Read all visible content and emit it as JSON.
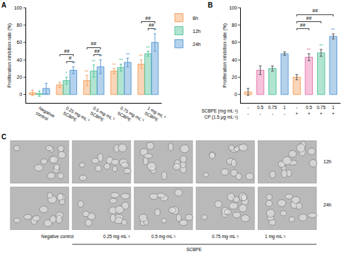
{
  "chart_data": [
    {
      "type": "bar",
      "panel": "A",
      "y_label": "Proliferation inhibition rate (%)",
      "categories": [
        "Negative control",
        "0.25 mg·mL⁻¹ SCBPE",
        "0.5 mg·mL⁻¹ SCBPE",
        "0.75 mg·mL⁻¹ SCBPE",
        "1 mg·mL⁻¹ SCBPE"
      ],
      "series": [
        {
          "name": "8h",
          "color": "#f4a261",
          "values": [
            2,
            11,
            16,
            27,
            35
          ],
          "errors": [
            3,
            3,
            6,
            3,
            5
          ],
          "annotations": [
            null,
            null,
            "**",
            "**",
            "**"
          ]
        },
        {
          "name": "12h",
          "color": "#52c49a",
          "values": [
            1,
            16,
            27,
            31,
            47
          ],
          "errors": [
            3,
            4,
            7,
            4,
            3
          ],
          "annotations": [
            null,
            "*",
            "**",
            "**",
            "**"
          ]
        },
        {
          "name": "24h",
          "color": "#5b9bd5",
          "values": [
            7,
            28,
            32,
            37,
            60
          ],
          "errors": [
            6,
            4,
            8,
            5,
            10
          ],
          "annotations": [
            null,
            "**",
            "**",
            "**",
            "**"
          ]
        }
      ],
      "comparisons": [
        {
          "category": "0.25 mg·mL⁻¹ SCBPE",
          "from": "12h",
          "to": "24h",
          "text": "#"
        },
        {
          "category": "0.25 mg·mL⁻¹ SCBPE",
          "from": "8h",
          "to": "24h",
          "text": "##"
        },
        {
          "category": "0.5 mg·mL⁻¹ SCBPE",
          "from": "12h",
          "to": "24h",
          "text": "##"
        },
        {
          "category": "0.5 mg·mL⁻¹ SCBPE",
          "from": "8h",
          "to": "24h",
          "text": "##"
        },
        {
          "category": "1 mg·mL⁻¹ SCBPE",
          "from": "12h",
          "to": "24h",
          "text": "##"
        },
        {
          "category": "1 mg·mL⁻¹ SCBPE",
          "from": "8h",
          "to": "24h",
          "text": "##"
        }
      ],
      "ylim": [
        -10,
        100
      ],
      "yticks": [
        0,
        20,
        40,
        60,
        80,
        100
      ],
      "grid": false,
      "legend": "top right"
    },
    {
      "type": "bar",
      "panel": "B",
      "y_label": "Proliferation inhibition rate (%)",
      "x_rows": [
        {
          "label": "SCBPE (mg·mL⁻¹)",
          "values": [
            "-",
            "0.5",
            "0.75",
            "1",
            "-",
            "0.5",
            "0.75",
            "1"
          ]
        },
        {
          "label": "CP (1.5 μg·mL⁻¹)",
          "values": [
            "-",
            "-",
            "-",
            "-",
            "+",
            "+",
            "+",
            "+"
          ]
        }
      ],
      "values": [
        3,
        28,
        30,
        47,
        20,
        43,
        48,
        67
      ],
      "errors": [
        4,
        5,
        3,
        2,
        3,
        4,
        4,
        3
      ],
      "colors": [
        "#f4a261",
        "#e87ab0",
        "#52c49a",
        "#5b9bd5",
        "#f4a261",
        "#e87ab0",
        "#52c49a",
        "#5b9bd5"
      ],
      "annotations": [
        null,
        null,
        null,
        null,
        null,
        "**",
        "**",
        "**"
      ],
      "comparisons": [
        {
          "from": 4,
          "to": 5,
          "text": "##"
        },
        {
          "from": 4,
          "to": 6,
          "text": "##"
        },
        {
          "from": 4,
          "to": 7,
          "text": "##"
        }
      ],
      "ylim": [
        -10,
        100
      ],
      "yticks": [
        0,
        20,
        40,
        60,
        80,
        100
      ],
      "grid": false
    }
  ],
  "images": {
    "panel": "C",
    "columns": [
      "Negative control",
      "0.25 mg·mL⁻¹",
      "0.5 mg·mL⁻¹",
      "0.75 mg·mL⁻¹",
      "1 mg·mL⁻¹"
    ],
    "rows": [
      "12h",
      "24h"
    ],
    "group_label": "SCBPE"
  }
}
